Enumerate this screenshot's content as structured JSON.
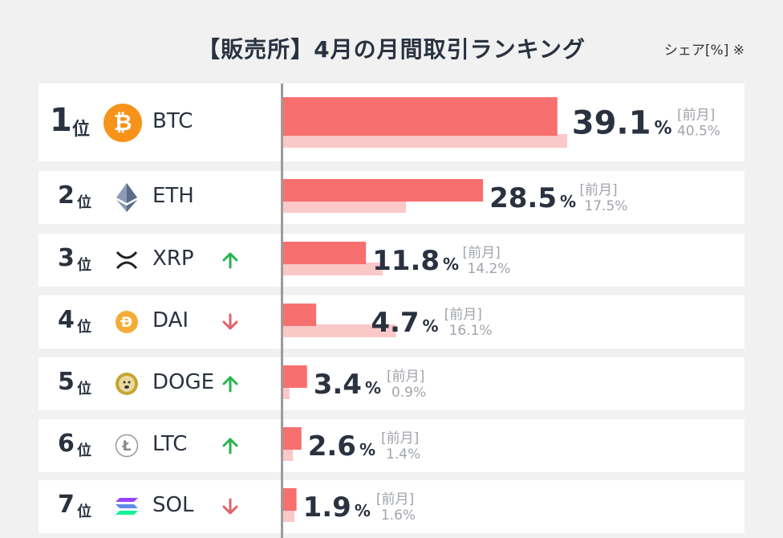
{
  "title": "【販売所】4月の月間取引ランキング",
  "share_note": "シェア[%] ※",
  "rank_unit": "位",
  "percent_sign": "%",
  "prev_month_label": "[前月]",
  "colors": {
    "current_bar": "#f76f6f",
    "previous_bar": "#fbc8c8",
    "up_arrow": "#27b34f",
    "down_arrow": "#e0626a"
  },
  "chart_data": {
    "type": "bar",
    "orientation": "horizontal",
    "categories": [
      "BTC",
      "ETH",
      "XRP",
      "DAI",
      "DOGE",
      "LTC",
      "SOL"
    ],
    "series": [
      {
        "name": "",
        "values": [
          39.1,
          28.5,
          11.8,
          4.7,
          3.4,
          2.6,
          1.9
        ]
      },
      {
        "name": "前月",
        "values": [
          40.5,
          17.5,
          14.2,
          16.1,
          0.9,
          1.4,
          1.6
        ]
      }
    ],
    "xlim": [
      0,
      40.5
    ],
    "rows": [
      {
        "rank": "1",
        "coin": "BTC",
        "icon": "bitcoin-icon",
        "trend": "none",
        "value": "39.1",
        "prev": "40.5%"
      },
      {
        "rank": "2",
        "coin": "ETH",
        "icon": "ethereum-icon",
        "trend": "none",
        "value": "28.5",
        "prev": "17.5%"
      },
      {
        "rank": "3",
        "coin": "XRP",
        "icon": "xrp-icon",
        "trend": "up",
        "value": "11.8",
        "prev": "14.2%"
      },
      {
        "rank": "4",
        "coin": "DAI",
        "icon": "dai-icon",
        "trend": "down",
        "value": "4.7",
        "prev": "16.1%"
      },
      {
        "rank": "5",
        "coin": "DOGE",
        "icon": "dogecoin-icon",
        "trend": "up",
        "value": "3.4",
        "prev": "0.9%"
      },
      {
        "rank": "6",
        "coin": "LTC",
        "icon": "litecoin-icon",
        "trend": "up",
        "value": "2.6",
        "prev": "1.4%"
      },
      {
        "rank": "7",
        "coin": "SOL",
        "icon": "solana-icon",
        "trend": "down",
        "value": "1.9",
        "prev": "1.6%"
      }
    ]
  }
}
